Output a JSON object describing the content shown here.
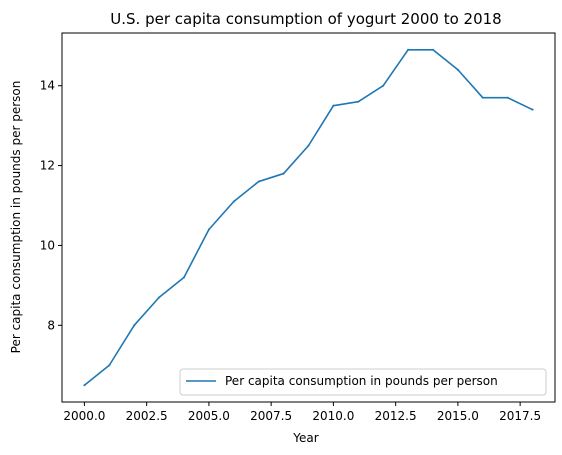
{
  "chart_data": {
    "type": "line",
    "title": "U.S. per capita consumption of yogurt 2000 to 2018",
    "xlabel": "Year",
    "ylabel": "Per capita consumption in pounds per person",
    "xlim": [
      1999.1,
      2018.9
    ],
    "ylim": [
      6.08,
      15.32
    ],
    "xticks": [
      2000.0,
      2002.5,
      2005.0,
      2007.5,
      2010.0,
      2012.5,
      2015.0,
      2017.5
    ],
    "xtick_labels": [
      "2000.0",
      "2002.5",
      "2005.0",
      "2007.5",
      "2010.0",
      "2012.5",
      "2015.0",
      "2017.5"
    ],
    "yticks": [
      8,
      10,
      12,
      14
    ],
    "ytick_labels": [
      "8",
      "10",
      "12",
      "14"
    ],
    "grid": false,
    "legend_position": "lower-right",
    "series": [
      {
        "name": "Per capita consumption in pounds per person",
        "color": "#1f77b4",
        "x": [
          2000,
          2001,
          2002,
          2003,
          2004,
          2005,
          2006,
          2007,
          2008,
          2009,
          2010,
          2011,
          2012,
          2013,
          2014,
          2015,
          2016,
          2017,
          2018
        ],
        "y": [
          6.5,
          7.0,
          8.0,
          8.7,
          9.2,
          10.4,
          11.1,
          11.6,
          11.8,
          12.5,
          13.5,
          13.6,
          14.0,
          14.9,
          14.9,
          14.4,
          13.7,
          13.7,
          13.4
        ]
      }
    ]
  }
}
